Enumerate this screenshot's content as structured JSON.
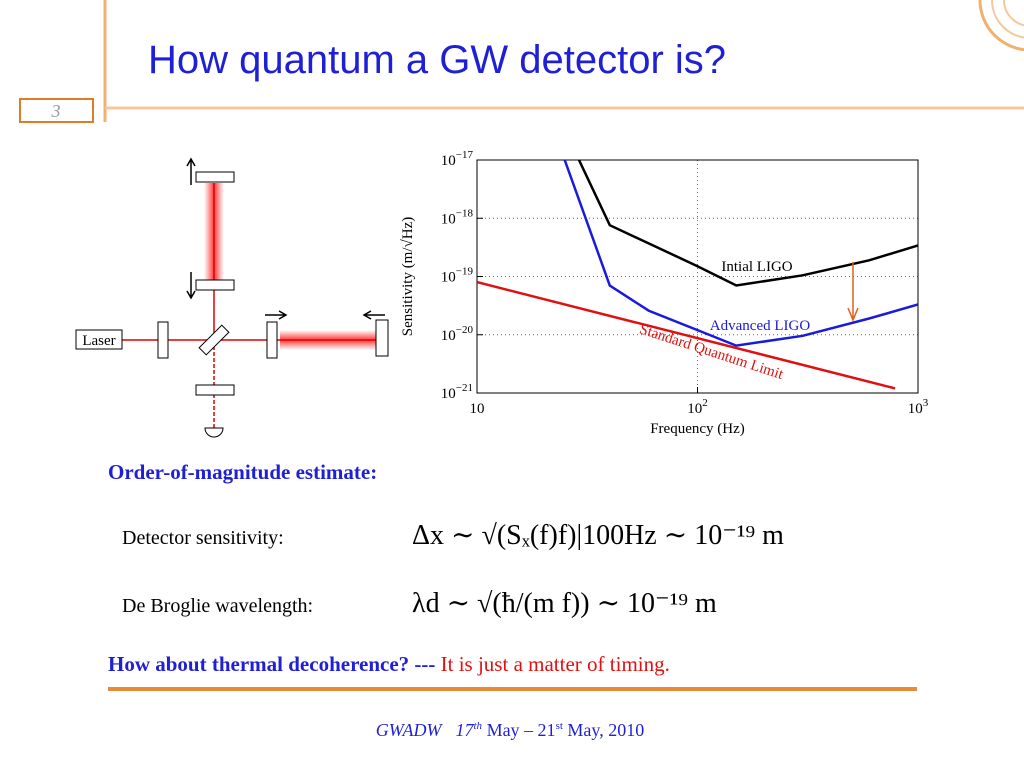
{
  "slide": {
    "number": "3",
    "title": "How quantum a GW detector is?"
  },
  "diagram": {
    "laser_label": "Laser"
  },
  "chart_data": {
    "type": "line",
    "xlabel": "Frequency (Hz)",
    "ylabel": "Sensitivity (m/√Hz)",
    "xscale": "log",
    "yscale": "log",
    "xlim": [
      10,
      1000
    ],
    "ylim": [
      1e-21,
      1e-17
    ],
    "xticks": [
      10,
      {
        "value": 100,
        "label": "10",
        "sup": "2"
      },
      {
        "value": 1000,
        "label": "10",
        "sup": "3"
      }
    ],
    "yticks": [
      {
        "value": 1e-21,
        "label": "10",
        "sup": "−21"
      },
      {
        "value": 1e-20,
        "label": "10",
        "sup": "−20"
      },
      {
        "value": 1e-19,
        "label": "10",
        "sup": "−19"
      },
      {
        "value": 1e-18,
        "label": "10",
        "sup": "−18"
      },
      {
        "value": 1e-17,
        "label": "10",
        "sup": "−17"
      }
    ],
    "grid": true,
    "series": [
      {
        "name": "Intial LIGO",
        "color": "#000000",
        "x": [
          29,
          40,
          100,
          150,
          300,
          600,
          1000
        ],
        "values": [
          1e-17,
          7.6e-19,
          1.5e-19,
          7e-20,
          1.05e-19,
          1.9e-19,
          3.4e-19
        ]
      },
      {
        "name": "Advanced LIGO",
        "color": "#1a1adc",
        "x": [
          25,
          40,
          60,
          100,
          150,
          300,
          600,
          1000
        ],
        "values": [
          1e-17,
          7e-20,
          2.6e-20,
          1.2e-20,
          6.5e-21,
          9.6e-21,
          1.9e-20,
          3.3e-20
        ]
      },
      {
        "name": "Standard Quantum Limit",
        "color": "#e01010",
        "x": [
          10,
          787
        ],
        "values": [
          8e-20,
          1.2e-21
        ]
      }
    ]
  },
  "estimate": {
    "heading": "Order-of-magnitude estimate:",
    "rows": [
      {
        "label": "Detector sensitivity:",
        "formula": "Δx ∼ √(Sₓ(f)f)|100Hz ∼ 10⁻¹⁹ m"
      },
      {
        "label": "De Broglie wavelength:",
        "formula": "λd ∼ √(ħ/(m f)) ∼ 10⁻¹⁹ m"
      }
    ]
  },
  "question": {
    "text": "How about thermal decoherence? ---",
    "answer": "It is just a matter of timing."
  },
  "footer": {
    "event": "GWADW",
    "day1": "17",
    "sup1": "th",
    "mid": " May – 21",
    "sup2": "st",
    "end": " May, 2010"
  }
}
